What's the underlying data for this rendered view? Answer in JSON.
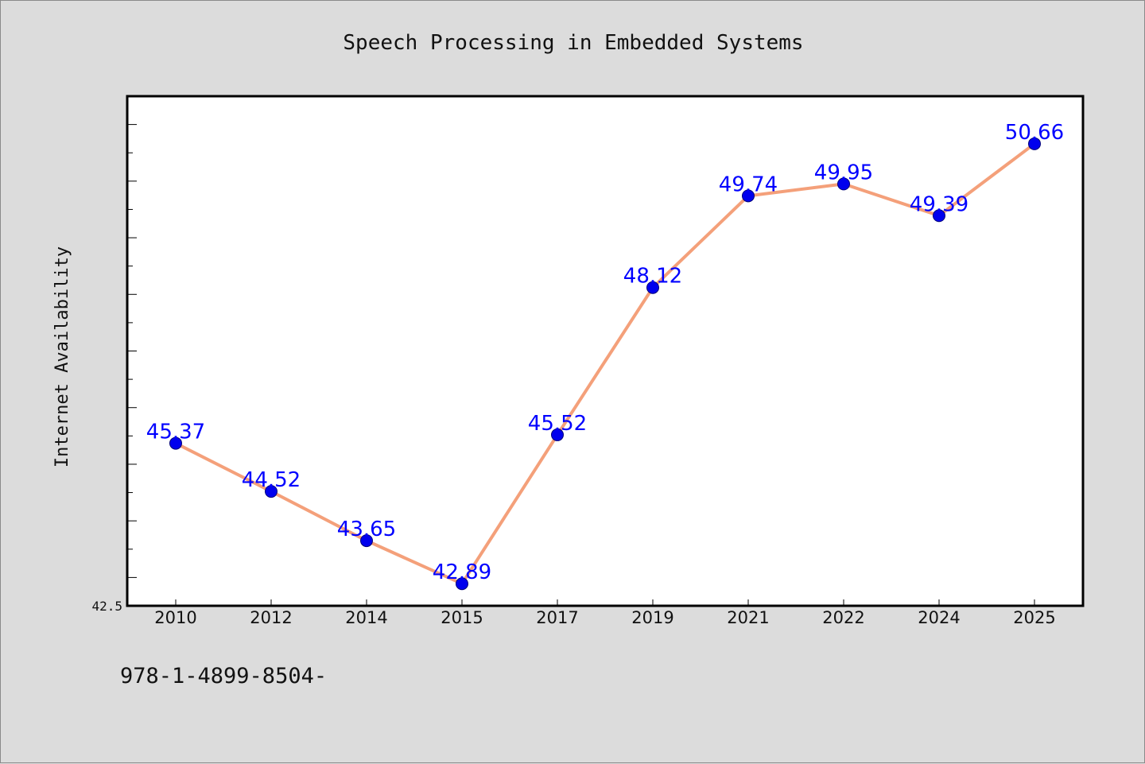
{
  "chart_data": {
    "type": "line",
    "title": "Speech Processing in Embedded Systems",
    "xlabel": "",
    "ylabel": "Internet Availability",
    "categories": [
      "2010",
      "2012",
      "2014",
      "2015",
      "2017",
      "2019",
      "2021",
      "2022",
      "2024",
      "2025"
    ],
    "series": [
      {
        "values": [
          45.37,
          44.52,
          43.65,
          42.89,
          45.52,
          48.12,
          49.74,
          49.95,
          49.39,
          50.66
        ]
      }
    ],
    "data_labels": [
      "45.37",
      "44.52",
      "43.65",
      "42.89",
      "45.52",
      "48.12",
      "49.74",
      "49.95",
      "49.39",
      "50.66"
    ],
    "ylim": [
      42.5,
      51.5
    ],
    "y_tick_label": "42.5",
    "grid": false,
    "legend": "none",
    "colors": {
      "line": "#f4a07a",
      "marker": "#0000ee",
      "data_label": "#0000ff",
      "plot_background": "#ffffff",
      "page_background": "#dcdcdc"
    }
  },
  "footer": {
    "code_text": "978-1-4899-8504-"
  }
}
